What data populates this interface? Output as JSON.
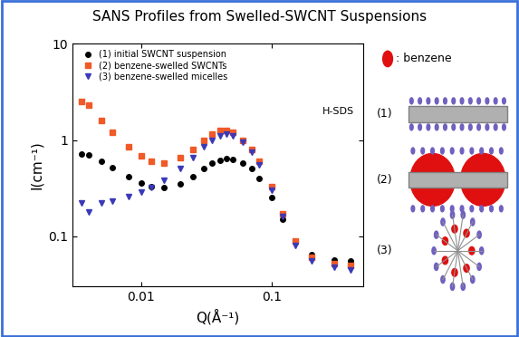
{
  "chart_data": {
    "type": "scatter",
    "title": "SANS Profiles from Swelled-SWCNT Suspensions",
    "x_label": "Q(Å⁻¹)",
    "y_label": "I(cm⁻¹)",
    "log": true,
    "xlim": [
      0.003,
      0.5
    ],
    "ylim": [
      0.03,
      10
    ],
    "xticks": [
      0.01,
      0.1
    ],
    "yticks": [
      0.1,
      1,
      10
    ],
    "legend": "upper left",
    "annotations": [
      "H-SDS",
      ": benzene",
      "(1)",
      "(2)",
      "(3)"
    ],
    "x": [
      0.0035,
      0.004,
      0.005,
      0.006,
      0.008,
      0.01,
      0.012,
      0.015,
      0.02,
      0.025,
      0.03,
      0.035,
      0.04,
      0.045,
      0.05,
      0.06,
      0.07,
      0.08,
      0.1,
      0.12,
      0.15,
      0.2,
      0.3,
      0.4
    ],
    "series": [
      {
        "name": "(1) initial SWCNT suspension",
        "color": "#000000",
        "marker": "circle",
        "values": [
          0.72,
          0.7,
          0.6,
          0.52,
          0.42,
          0.36,
          0.33,
          0.32,
          0.35,
          0.42,
          0.5,
          0.57,
          0.62,
          0.64,
          0.63,
          0.58,
          0.5,
          0.4,
          0.25,
          0.15,
          0.09,
          0.065,
          0.057,
          0.055
        ]
      },
      {
        "name": "(2) benzene-swelled SWCNTs",
        "color": "#f05a28",
        "marker": "square",
        "values": [
          2.5,
          2.3,
          1.6,
          1.2,
          0.85,
          0.68,
          0.6,
          0.58,
          0.65,
          0.8,
          1.0,
          1.15,
          1.25,
          1.25,
          1.2,
          1.0,
          0.8,
          0.6,
          0.33,
          0.17,
          0.09,
          0.06,
          0.052,
          0.05
        ]
      },
      {
        "name": "(3) benzene-swelled micelles",
        "color": "#3a3ab8",
        "marker": "triangle_down",
        "values": [
          0.22,
          0.18,
          0.22,
          0.23,
          0.26,
          0.29,
          0.32,
          0.38,
          0.5,
          0.65,
          0.85,
          1.0,
          1.1,
          1.15,
          1.1,
          0.95,
          0.75,
          0.55,
          0.3,
          0.16,
          0.08,
          0.055,
          0.048,
          0.045
        ]
      }
    ]
  }
}
